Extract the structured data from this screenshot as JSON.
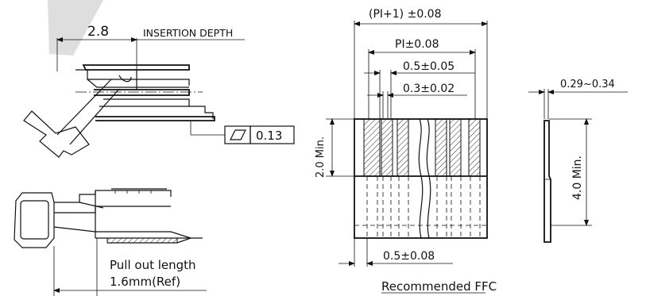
{
  "left_view": {
    "dim_insertion_value": "2.8",
    "insertion_label": "INSERTION DEPTH",
    "flatness_value": "0.13",
    "pull_out_line1": "Pull out length",
    "pull_out_line2": "1.6mm(Ref)"
  },
  "ffc_view": {
    "dim_total": "(PI+1) ±0.08",
    "dim_pitch_total": "PI±0.08",
    "dim_pitch": "0.5±0.05",
    "dim_conductor": "0.3±0.02",
    "dim_stiffener": "2.0 Min.",
    "dim_edge": "0.5±0.08",
    "title": "Recommended FFC"
  },
  "side_view": {
    "dim_thickness": "0.29~0.34",
    "dim_length": "4.0  Min."
  }
}
